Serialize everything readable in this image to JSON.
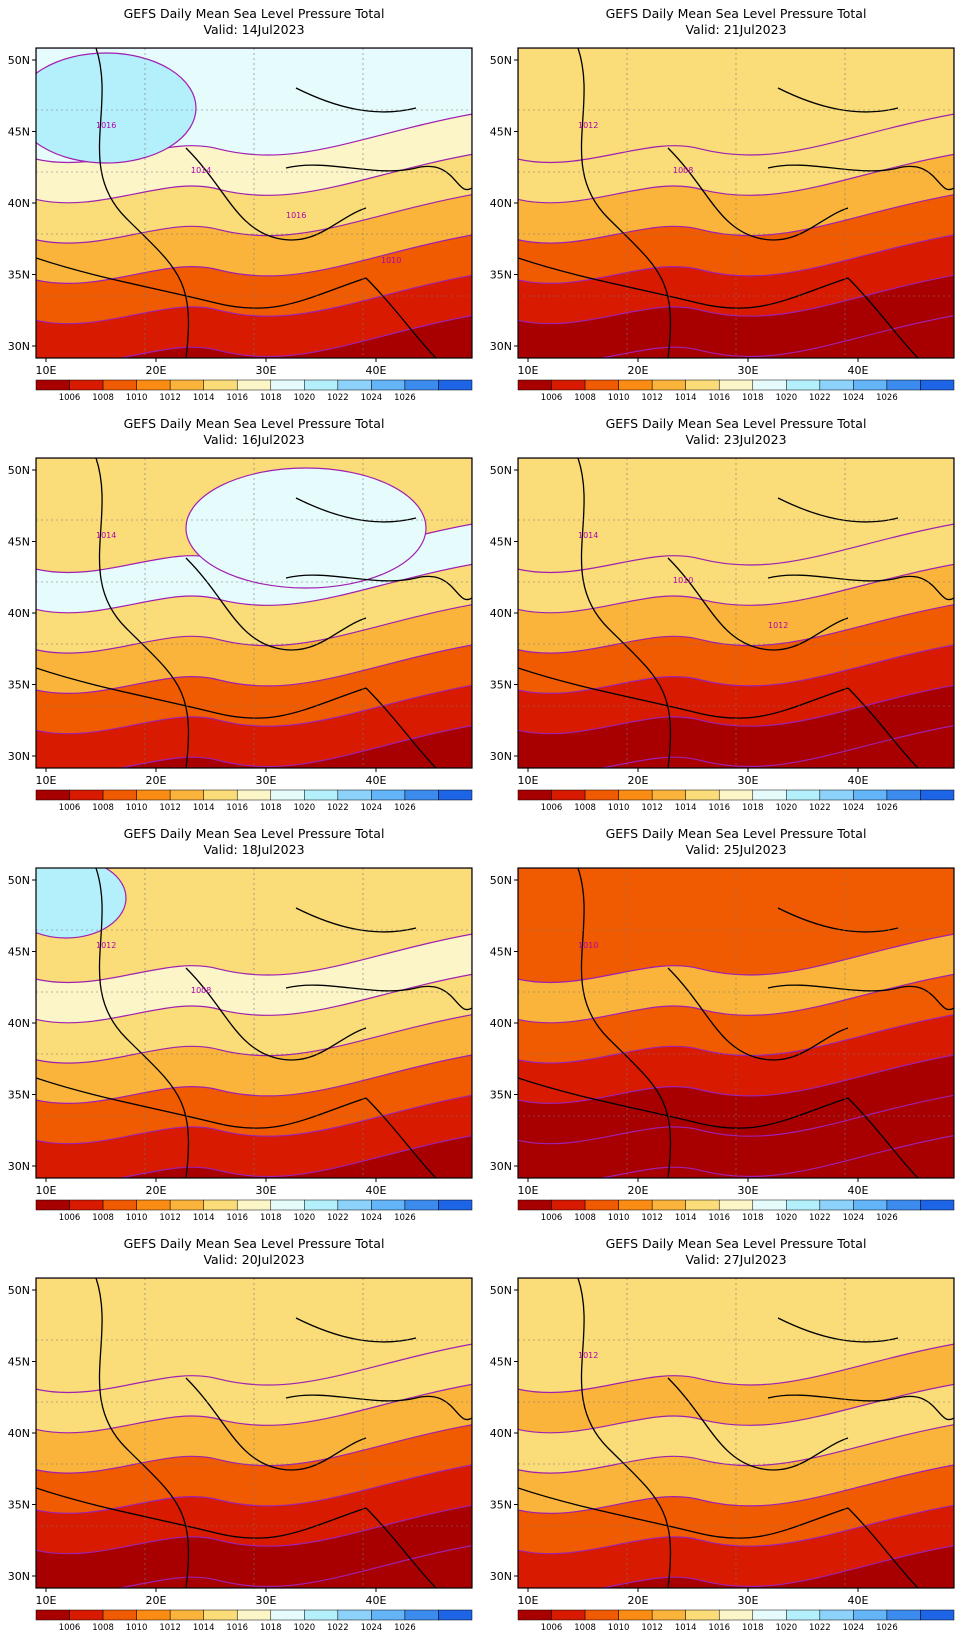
{
  "figure": {
    "panels": [
      {
        "id": "p14",
        "title": "GEFS Daily Mean Sea Level Pressure Total",
        "valid": "Valid: 14Jul2023",
        "contour_labels": [
          "1016",
          "1014",
          "1016",
          "1010"
        ],
        "regime": "high-west"
      },
      {
        "id": "p21",
        "title": "GEFS Daily Mean Sea Level Pressure Total",
        "valid": "Valid: 21Jul2023",
        "contour_labels": [
          "1012",
          "1008"
        ],
        "regime": "warm"
      },
      {
        "id": "p16",
        "title": "GEFS Daily Mean Sea Level Pressure Total",
        "valid": "Valid: 16Jul2023",
        "contour_labels": [
          "1014"
        ],
        "regime": "high-north"
      },
      {
        "id": "p23",
        "title": "GEFS Daily Mean Sea Level Pressure Total",
        "valid": "Valid: 23Jul2023",
        "contour_labels": [
          "1014",
          "1010",
          "1012"
        ],
        "regime": "warm"
      },
      {
        "id": "p18",
        "title": "GEFS Daily Mean Sea Level Pressure Total",
        "valid": "Valid: 18Jul2023",
        "contour_labels": [
          "1012",
          "1008"
        ],
        "regime": "mid"
      },
      {
        "id": "p25",
        "title": "GEFS Daily Mean Sea Level Pressure Total",
        "valid": "Valid: 25Jul2023",
        "contour_labels": [
          "1010"
        ],
        "regime": "hot"
      },
      {
        "id": "p20",
        "title": "GEFS Daily Mean Sea Level Pressure Total",
        "valid": "Valid: 20Jul2023",
        "contour_labels": [],
        "regime": "warm"
      },
      {
        "id": "p27",
        "title": "GEFS Daily Mean Sea Level Pressure Total",
        "valid": "Valid: 27Jul2023",
        "contour_labels": [
          "1012"
        ],
        "regime": "warm2"
      }
    ],
    "lon_ticks": [
      "10E",
      "20E",
      "30E",
      "40E"
    ],
    "lat_ticks": [
      "50N",
      "45N",
      "40N",
      "35N",
      "30N"
    ],
    "colorbar": {
      "labels": [
        "1006",
        "1008",
        "1010",
        "1012",
        "1014",
        "1016",
        "1018",
        "1020",
        "1022",
        "1024",
        "1026"
      ],
      "colors": [
        "#a80000",
        "#d81a00",
        "#f05a00",
        "#fa8c14",
        "#fab43c",
        "#fadc78",
        "#fcf5c8",
        "#e6fcfc",
        "#b4f0fc",
        "#8cd2fa",
        "#64b4f8",
        "#3c8cf0",
        "#1e64e6"
      ]
    }
  }
}
